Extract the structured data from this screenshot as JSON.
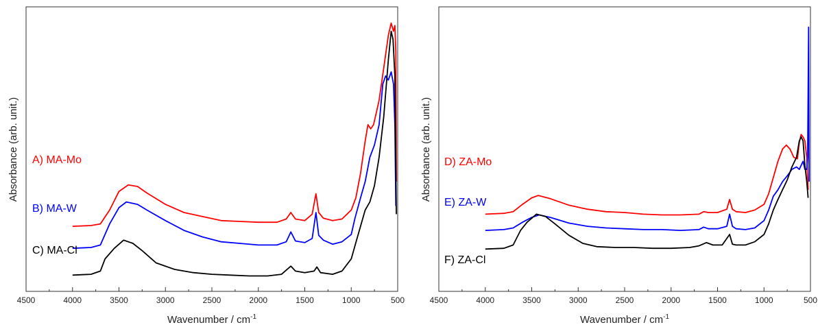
{
  "chart_data": [
    {
      "type": "line",
      "panel": "left",
      "xlabel": "Wavenumber / cm",
      "xlabel_sup": "-1",
      "ylabel": "Absorbance (arb. unit.)",
      "xlim": [
        4500,
        500
      ],
      "x_reversed": true,
      "y_ticks_shown": false,
      "xticks": [
        4500,
        4000,
        3500,
        3000,
        2500,
        2000,
        1500,
        1000,
        500
      ],
      "xtick_labels": [
        "4500",
        "4000",
        "3500",
        "3000",
        "2500",
        "2000",
        "1500",
        "1000",
        "500"
      ],
      "series": [
        {
          "name": "A) MA-Mo",
          "color": "#ff0000",
          "points": [
            [
              4000,
              0.35
            ],
            [
              3800,
              0.36
            ],
            [
              3700,
              0.38
            ],
            [
              3600,
              0.55
            ],
            [
              3500,
              0.78
            ],
            [
              3400,
              0.86
            ],
            [
              3300,
              0.84
            ],
            [
              3200,
              0.76
            ],
            [
              3000,
              0.62
            ],
            [
              2800,
              0.52
            ],
            [
              2600,
              0.47
            ],
            [
              2400,
              0.42
            ],
            [
              2200,
              0.41
            ],
            [
              2000,
              0.4
            ],
            [
              1800,
              0.4
            ],
            [
              1700,
              0.44
            ],
            [
              1650,
              0.52
            ],
            [
              1600,
              0.44
            ],
            [
              1500,
              0.42
            ],
            [
              1420,
              0.5
            ],
            [
              1380,
              0.75
            ],
            [
              1350,
              0.52
            ],
            [
              1300,
              0.45
            ],
            [
              1200,
              0.42
            ],
            [
              1100,
              0.44
            ],
            [
              1000,
              0.55
            ],
            [
              950,
              0.7
            ],
            [
              900,
              1.0
            ],
            [
              850,
              1.4
            ],
            [
              820,
              1.6
            ],
            [
              790,
              1.55
            ],
            [
              760,
              1.6
            ],
            [
              700,
              1.9
            ],
            [
              650,
              2.3
            ],
            [
              600,
              2.7
            ],
            [
              570,
              2.85
            ],
            [
              545,
              2.75
            ],
            [
              530,
              2.82
            ],
            [
              520,
              2.5
            ],
            [
              515,
              0.9
            ]
          ]
        },
        {
          "name": "B) MA-W",
          "color": "#0000ff",
          "points": [
            [
              4000,
              0.08
            ],
            [
              3800,
              0.09
            ],
            [
              3700,
              0.12
            ],
            [
              3600,
              0.38
            ],
            [
              3500,
              0.58
            ],
            [
              3420,
              0.65
            ],
            [
              3300,
              0.62
            ],
            [
              3200,
              0.55
            ],
            [
              3000,
              0.42
            ],
            [
              2800,
              0.3
            ],
            [
              2600,
              0.22
            ],
            [
              2400,
              0.16
            ],
            [
              2200,
              0.14
            ],
            [
              2000,
              0.12
            ],
            [
              1800,
              0.12
            ],
            [
              1700,
              0.16
            ],
            [
              1650,
              0.28
            ],
            [
              1600,
              0.17
            ],
            [
              1500,
              0.15
            ],
            [
              1420,
              0.2
            ],
            [
              1380,
              0.52
            ],
            [
              1350,
              0.24
            ],
            [
              1300,
              0.18
            ],
            [
              1200,
              0.13
            ],
            [
              1100,
              0.16
            ],
            [
              1000,
              0.25
            ],
            [
              960,
              0.45
            ],
            [
              900,
              0.7
            ],
            [
              850,
              0.9
            ],
            [
              800,
              1.2
            ],
            [
              750,
              1.35
            ],
            [
              700,
              1.6
            ],
            [
              660,
              2.1
            ],
            [
              630,
              2.2
            ],
            [
              600,
              2.15
            ],
            [
              570,
              2.25
            ],
            [
              545,
              2.1
            ],
            [
              530,
              1.6
            ],
            [
              520,
              0.6
            ]
          ]
        },
        {
          "name": "C) MA-Cl",
          "color": "#000000",
          "points": [
            [
              4000,
              -0.25
            ],
            [
              3800,
              -0.24
            ],
            [
              3700,
              -0.2
            ],
            [
              3650,
              -0.05
            ],
            [
              3550,
              0.08
            ],
            [
              3450,
              0.18
            ],
            [
              3350,
              0.14
            ],
            [
              3250,
              0.05
            ],
            [
              3100,
              -0.1
            ],
            [
              2900,
              -0.18
            ],
            [
              2700,
              -0.22
            ],
            [
              2500,
              -0.24
            ],
            [
              2300,
              -0.25
            ],
            [
              2100,
              -0.26
            ],
            [
              1900,
              -0.26
            ],
            [
              1750,
              -0.24
            ],
            [
              1650,
              -0.14
            ],
            [
              1600,
              -0.2
            ],
            [
              1500,
              -0.22
            ],
            [
              1400,
              -0.2
            ],
            [
              1370,
              -0.15
            ],
            [
              1330,
              -0.22
            ],
            [
              1200,
              -0.24
            ],
            [
              1100,
              -0.2
            ],
            [
              1000,
              -0.05
            ],
            [
              950,
              0.15
            ],
            [
              900,
              0.35
            ],
            [
              850,
              0.55
            ],
            [
              800,
              0.65
            ],
            [
              750,
              0.85
            ],
            [
              700,
              1.2
            ],
            [
              650,
              1.7
            ],
            [
              600,
              2.4
            ],
            [
              570,
              2.75
            ],
            [
              550,
              2.65
            ],
            [
              530,
              2.2
            ],
            [
              515,
              0.5
            ]
          ]
        }
      ]
    },
    {
      "type": "line",
      "panel": "right",
      "xlabel": "Wavenumber / cm",
      "xlabel_sup": "-1",
      "ylabel": "Absorbance (arb. unit.)",
      "xlim": [
        4500,
        500
      ],
      "x_reversed": true,
      "y_ticks_shown": false,
      "xticks": [
        4500,
        4000,
        3500,
        3000,
        2500,
        2000,
        1500,
        1000,
        500
      ],
      "xtick_labels": [
        "4500",
        "4000",
        "3500",
        "3000",
        "2500",
        "2000",
        "1500",
        "1000",
        "500"
      ],
      "series": [
        {
          "name": "D) ZA-Mo",
          "color": "#ff0000",
          "points": [
            [
              4000,
              0.5
            ],
            [
              3800,
              0.51
            ],
            [
              3700,
              0.53
            ],
            [
              3600,
              0.62
            ],
            [
              3500,
              0.7
            ],
            [
              3430,
              0.73
            ],
            [
              3300,
              0.69
            ],
            [
              3100,
              0.61
            ],
            [
              2900,
              0.56
            ],
            [
              2700,
              0.53
            ],
            [
              2500,
              0.52
            ],
            [
              2300,
              0.5
            ],
            [
              2100,
              0.49
            ],
            [
              1900,
              0.49
            ],
            [
              1700,
              0.5
            ],
            [
              1650,
              0.53
            ],
            [
              1600,
              0.52
            ],
            [
              1500,
              0.52
            ],
            [
              1400,
              0.56
            ],
            [
              1370,
              0.68
            ],
            [
              1340,
              0.56
            ],
            [
              1300,
              0.53
            ],
            [
              1200,
              0.52
            ],
            [
              1100,
              0.55
            ],
            [
              1000,
              0.62
            ],
            [
              950,
              0.75
            ],
            [
              900,
              0.95
            ],
            [
              850,
              1.15
            ],
            [
              800,
              1.3
            ],
            [
              760,
              1.35
            ],
            [
              720,
              1.3
            ],
            [
              680,
              1.2
            ],
            [
              640,
              1.18
            ],
            [
              620,
              1.38
            ],
            [
              600,
              1.48
            ],
            [
              580,
              1.45
            ],
            [
              560,
              1.4
            ],
            [
              540,
              1.2
            ],
            [
              525,
              0.8
            ]
          ]
        },
        {
          "name": "E) ZA-W",
          "color": "#0000ff",
          "points": [
            [
              4000,
              0.3
            ],
            [
              3800,
              0.31
            ],
            [
              3700,
              0.33
            ],
            [
              3600,
              0.4
            ],
            [
              3500,
              0.46
            ],
            [
              3420,
              0.49
            ],
            [
              3300,
              0.46
            ],
            [
              3100,
              0.39
            ],
            [
              2900,
              0.35
            ],
            [
              2700,
              0.33
            ],
            [
              2500,
              0.32
            ],
            [
              2300,
              0.31
            ],
            [
              2100,
              0.31
            ],
            [
              1900,
              0.3
            ],
            [
              1700,
              0.31
            ],
            [
              1650,
              0.34
            ],
            [
              1600,
              0.32
            ],
            [
              1500,
              0.32
            ],
            [
              1400,
              0.35
            ],
            [
              1370,
              0.5
            ],
            [
              1340,
              0.35
            ],
            [
              1300,
              0.32
            ],
            [
              1200,
              0.31
            ],
            [
              1100,
              0.33
            ],
            [
              1000,
              0.42
            ],
            [
              950,
              0.55
            ],
            [
              900,
              0.72
            ],
            [
              850,
              0.8
            ],
            [
              800,
              0.9
            ],
            [
              750,
              0.97
            ],
            [
              700,
              1.05
            ],
            [
              650,
              1.08
            ],
            [
              620,
              1.05
            ],
            [
              600,
              1.1
            ],
            [
              580,
              1.15
            ],
            [
              560,
              1.05
            ],
            [
              540,
              1.05
            ],
            [
              530,
              1.2
            ],
            [
              520,
              2.8
            ],
            [
              515,
              0.9
            ]
          ]
        },
        {
          "name": "F) ZA-Cl",
          "color": "#000000",
          "points": [
            [
              4000,
              0.07
            ],
            [
              3800,
              0.08
            ],
            [
              3700,
              0.12
            ],
            [
              3620,
              0.3
            ],
            [
              3550,
              0.4
            ],
            [
              3450,
              0.5
            ],
            [
              3350,
              0.47
            ],
            [
              3250,
              0.38
            ],
            [
              3100,
              0.24
            ],
            [
              2950,
              0.14
            ],
            [
              2800,
              0.1
            ],
            [
              2600,
              0.09
            ],
            [
              2400,
              0.09
            ],
            [
              2200,
              0.08
            ],
            [
              2000,
              0.08
            ],
            [
              1800,
              0.09
            ],
            [
              1700,
              0.11
            ],
            [
              1620,
              0.15
            ],
            [
              1550,
              0.12
            ],
            [
              1450,
              0.12
            ],
            [
              1370,
              0.25
            ],
            [
              1340,
              0.13
            ],
            [
              1300,
              0.12
            ],
            [
              1200,
              0.12
            ],
            [
              1100,
              0.16
            ],
            [
              1000,
              0.25
            ],
            [
              950,
              0.38
            ],
            [
              900,
              0.55
            ],
            [
              850,
              0.68
            ],
            [
              800,
              0.8
            ],
            [
              750,
              0.92
            ],
            [
              700,
              1.08
            ],
            [
              650,
              1.2
            ],
            [
              620,
              1.4
            ],
            [
              600,
              1.45
            ],
            [
              580,
              1.4
            ],
            [
              560,
              1.1
            ],
            [
              540,
              0.9
            ],
            [
              525,
              0.7
            ]
          ]
        }
      ]
    }
  ]
}
